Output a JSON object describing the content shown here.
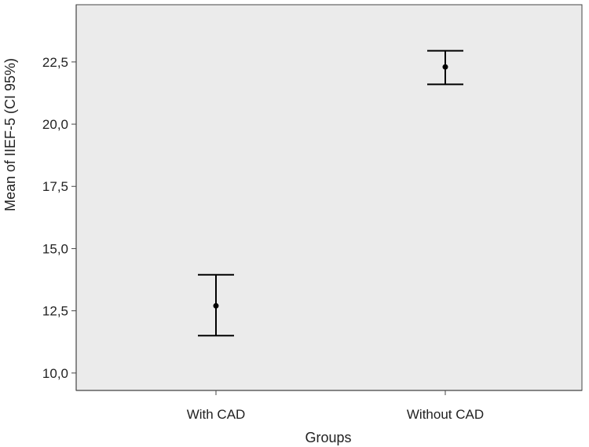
{
  "chart_data": {
    "type": "errorbar",
    "xlabel": "Groups",
    "ylabel": "Mean of IIEF-5 (CI 95%)",
    "categories": [
      "With CAD",
      "Without CAD"
    ],
    "ylim": [
      9.3,
      24.8
    ],
    "yticks": [
      10.0,
      12.5,
      15.0,
      17.5,
      20.0,
      22.5
    ],
    "ytick_labels": [
      "10,0",
      "12,5",
      "15,0",
      "17,5",
      "20,0",
      "22,5"
    ],
    "series": [
      {
        "values": [
          12.7,
          22.3
        ],
        "ci_lower": [
          11.5,
          21.6
        ],
        "ci_upper": [
          13.95,
          22.95
        ]
      }
    ],
    "grid": false,
    "legend": "none",
    "colors": {
      "plot_background": "#ebebeb",
      "marks": "#000000",
      "axis": "#444444"
    }
  }
}
